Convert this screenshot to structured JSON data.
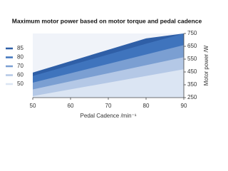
{
  "chart_data": {
    "type": "area",
    "title": "Maximum motor power based on motor torque and pedal cadence",
    "x_label": "Pedal Cadence /min⁻¹",
    "y_label": "Motor power /W",
    "x": [
      50,
      80,
      90
    ],
    "series": [
      {
        "name": "85",
        "color": "#2f5fa7",
        "values": [
          445,
          712,
          750
        ]
      },
      {
        "name": "80",
        "color": "#3f74bd",
        "values": [
          419,
          670,
          750
        ]
      },
      {
        "name": "70",
        "color": "#7b9fd2",
        "values": [
          367,
          586,
          660
        ]
      },
      {
        "name": "60",
        "color": "#b4c8e6",
        "values": [
          314,
          503,
          565
        ]
      },
      {
        "name": "50",
        "color": "#dbe5f3",
        "values": [
          262,
          419,
          471
        ]
      }
    ],
    "xlim": [
      50,
      90
    ],
    "xticks": [
      50,
      60,
      70,
      80,
      90
    ],
    "ylim": [
      250,
      750
    ],
    "yticks": [
      250,
      350,
      450,
      550,
      650,
      750
    ],
    "legend": "left"
  }
}
